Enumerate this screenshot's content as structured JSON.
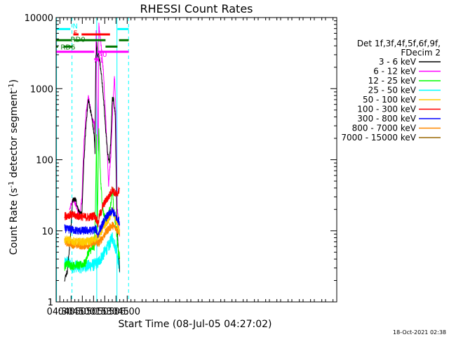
{
  "chart_data": {
    "type": "line",
    "title": "RHESSI Count Rates",
    "xlabel": "Start Time (08-Jul-05 04:27:02)",
    "ylabel_parts": [
      "Count Rate (s",
      "-1",
      " detector segment",
      "-1",
      ")"
    ],
    "yscale": "log",
    "xlim": [
      265,
      640
    ],
    "ylim": [
      1,
      10000
    ],
    "x_unit": "minutes after 00:00 UT",
    "x_ticks": [
      {
        "value": 270,
        "label": "04:30"
      },
      {
        "value": 285,
        "label": "04:45"
      },
      {
        "value": 300,
        "label": "05:00"
      },
      {
        "value": 315,
        "label": "05:15"
      },
      {
        "value": 330,
        "label": "05:30"
      },
      {
        "value": 345,
        "label": "05:45"
      },
      {
        "value": 360,
        "label": "06:00"
      }
    ],
    "y_ticks": [
      {
        "value": 1,
        "label": "1"
      },
      {
        "value": 10,
        "label": "10"
      },
      {
        "value": 100,
        "label": "100"
      },
      {
        "value": 1000,
        "label": "1000"
      },
      {
        "value": 10000,
        "label": "10000"
      }
    ],
    "legend": {
      "header": [
        "Det 1f,3f,4f,5f,6f,9f,",
        "FDecim 2"
      ],
      "placement": "right"
    },
    "footer_timestamp": "18-Oct-2021 02:38",
    "series": [
      {
        "name": "3 - 6 keV",
        "color": "#000000",
        "points": [
          [
            276.3,
            2.1
          ],
          [
            280,
            2.7
          ],
          [
            284,
            8
          ],
          [
            287,
            27
          ],
          [
            291,
            28
          ],
          [
            294,
            21
          ],
          [
            297,
            17
          ],
          [
            299.5,
            18
          ],
          [
            302,
            90
          ],
          [
            305,
            320
          ],
          [
            308,
            700
          ],
          [
            310,
            560
          ],
          [
            313,
            380
          ],
          [
            316,
            210
          ],
          [
            317,
            120
          ],
          [
            318,
            2500
          ],
          [
            319.5,
            4300
          ],
          [
            320.5,
            2800
          ],
          [
            322,
            3000
          ],
          [
            325,
            1800
          ],
          [
            328,
            800
          ],
          [
            331,
            280
          ],
          [
            334,
            120
          ],
          [
            336,
            90
          ],
          [
            338,
            170
          ],
          [
            340,
            720
          ],
          [
            342,
            700
          ],
          [
            344,
            440
          ],
          [
            346,
            20
          ],
          [
            347.5,
            7
          ],
          [
            349,
            4
          ],
          [
            350,
            2.6
          ]
        ]
      },
      {
        "name": "6 - 12 keV",
        "color": "#ff00ff",
        "points": [
          [
            283,
            20
          ],
          [
            286,
            25
          ],
          [
            289,
            27
          ],
          [
            292,
            22
          ],
          [
            294,
            18
          ],
          [
            297,
            18
          ],
          [
            299.5,
            30
          ],
          [
            302,
            160
          ],
          [
            305,
            450
          ],
          [
            308,
            760
          ],
          [
            310,
            600
          ],
          [
            313,
            380
          ],
          [
            316,
            320
          ],
          [
            317,
            220
          ],
          [
            318.5,
            7000
          ],
          [
            319.5,
            800
          ],
          [
            320.5,
            250
          ],
          [
            321.5,
            120
          ],
          [
            322,
            8000
          ],
          [
            325,
            4200
          ],
          [
            328,
            1800
          ],
          [
            331,
            450
          ],
          [
            333.5,
            110
          ],
          [
            335,
            45
          ],
          [
            338,
            110
          ],
          [
            341,
            600
          ],
          [
            343,
            1600
          ],
          [
            345,
            400
          ],
          [
            346.5,
            22
          ],
          [
            349,
            12
          ],
          [
            350,
            8
          ]
        ]
      },
      {
        "name": "12 - 25 keV",
        "color": "#00ff00",
        "points": [
          [
            276.3,
            3.1
          ],
          [
            280,
            3.5
          ],
          [
            284,
            3.3
          ],
          [
            288,
            3.2
          ],
          [
            292,
            3.4
          ],
          [
            296,
            3.2
          ],
          [
            300,
            3.4
          ],
          [
            304,
            3.5
          ],
          [
            308,
            5
          ],
          [
            312,
            5.5
          ],
          [
            316,
            6
          ],
          [
            317.5,
            20
          ],
          [
            319,
            260
          ],
          [
            320,
            10
          ],
          [
            322,
            250
          ],
          [
            325,
            40
          ],
          [
            328,
            18
          ],
          [
            331,
            14
          ],
          [
            334,
            16
          ],
          [
            337,
            20
          ],
          [
            339,
            30
          ],
          [
            340.5,
            40
          ],
          [
            342,
            18
          ],
          [
            344,
            14
          ],
          [
            346,
            9
          ],
          [
            348,
            5
          ],
          [
            350,
            4.2
          ]
        ]
      },
      {
        "name": "25 - 50 keV",
        "color": "#00ffff",
        "points": [
          [
            276.3,
            3.4
          ],
          [
            280,
            3.7
          ],
          [
            284,
            3.3
          ],
          [
            288,
            3.1
          ],
          [
            292,
            3.2
          ],
          [
            296,
            3.1
          ],
          [
            300,
            3.1
          ],
          [
            304,
            3.2
          ],
          [
            308,
            3.2
          ],
          [
            312,
            3.3
          ],
          [
            316,
            3.3
          ],
          [
            318,
            3.5
          ],
          [
            320,
            3.4
          ],
          [
            322,
            3.7
          ],
          [
            324,
            4
          ],
          [
            327,
            4.5
          ],
          [
            330,
            5
          ],
          [
            333,
            5.7
          ],
          [
            336,
            6.3
          ],
          [
            338,
            7.2
          ],
          [
            340,
            8.3
          ],
          [
            342,
            7.1
          ],
          [
            344,
            6
          ],
          [
            346,
            5.2
          ],
          [
            348,
            3.8
          ],
          [
            350,
            3
          ]
        ]
      },
      {
        "name": "50 - 100 keV",
        "color": "#ffcc00",
        "points": [
          [
            276.3,
            7.6
          ],
          [
            280,
            7.5
          ],
          [
            284,
            7.3
          ],
          [
            288,
            7.1
          ],
          [
            292,
            7
          ],
          [
            296,
            7
          ],
          [
            300,
            7
          ],
          [
            304,
            7
          ],
          [
            308,
            7.1
          ],
          [
            312,
            7.3
          ],
          [
            316,
            7.5
          ],
          [
            318,
            8
          ],
          [
            320,
            8.3
          ],
          [
            322,
            8.8
          ],
          [
            324,
            9.3
          ],
          [
            327,
            10.5
          ],
          [
            330,
            12
          ],
          [
            333,
            13.5
          ],
          [
            336,
            15
          ],
          [
            338,
            17
          ],
          [
            340,
            20
          ],
          [
            342,
            18
          ],
          [
            344,
            15
          ],
          [
            346,
            13
          ],
          [
            348,
            11
          ],
          [
            350,
            9.5
          ]
        ]
      },
      {
        "name": "100 - 300 keV",
        "color": "#ff0000",
        "points": [
          [
            276.3,
            16
          ],
          [
            280,
            16.5
          ],
          [
            284,
            17
          ],
          [
            288,
            16.5
          ],
          [
            292,
            16.3
          ],
          [
            296,
            16
          ],
          [
            300,
            15.8
          ],
          [
            304,
            15.6
          ],
          [
            308,
            15.5
          ],
          [
            312,
            15.8
          ],
          [
            316,
            16.5
          ],
          [
            318,
            15
          ],
          [
            320,
            14
          ],
          [
            321,
            12
          ],
          [
            323,
            17
          ],
          [
            325,
            18
          ],
          [
            327,
            22
          ],
          [
            330,
            25
          ],
          [
            333,
            28
          ],
          [
            336,
            31
          ],
          [
            338,
            34
          ],
          [
            340,
            38
          ],
          [
            342,
            36
          ],
          [
            344,
            33
          ],
          [
            346,
            32
          ],
          [
            348,
            36
          ],
          [
            350,
            39
          ]
        ]
      },
      {
        "name": "300 - 800 keV",
        "color": "#0000ff",
        "points": [
          [
            276.3,
            10.8
          ],
          [
            280,
            10.4
          ],
          [
            284,
            10.5
          ],
          [
            288,
            10.3
          ],
          [
            292,
            10
          ],
          [
            296,
            10
          ],
          [
            300,
            10
          ],
          [
            304,
            10.1
          ],
          [
            308,
            10
          ],
          [
            312,
            10.1
          ],
          [
            316,
            10.4
          ],
          [
            318,
            10.5
          ],
          [
            320,
            9.5
          ],
          [
            321,
            8.5
          ],
          [
            323,
            10.5
          ],
          [
            325,
            11
          ],
          [
            327,
            12.5
          ],
          [
            330,
            14.5
          ],
          [
            333,
            16
          ],
          [
            336,
            17
          ],
          [
            338,
            18
          ],
          [
            340,
            19
          ],
          [
            342,
            18
          ],
          [
            344,
            16.5
          ],
          [
            346,
            14.5
          ],
          [
            348,
            14
          ],
          [
            350,
            13.5
          ]
        ]
      },
      {
        "name": "800 - 7000 keV",
        "color": "#ff8800",
        "points": [
          [
            276.3,
            7.2
          ],
          [
            280,
            6.8
          ],
          [
            284,
            6.7
          ],
          [
            288,
            6.4
          ],
          [
            292,
            6.3
          ],
          [
            296,
            6.3
          ],
          [
            300,
            6.2
          ],
          [
            304,
            6.2
          ],
          [
            308,
            6.3
          ],
          [
            312,
            6.5
          ],
          [
            316,
            6.8
          ],
          [
            318,
            7
          ],
          [
            320,
            6.6
          ],
          [
            322,
            6.7
          ],
          [
            324,
            7.3
          ],
          [
            327,
            8
          ],
          [
            330,
            9
          ],
          [
            333,
            10
          ],
          [
            336,
            11
          ],
          [
            338,
            11.5
          ],
          [
            340,
            12
          ],
          [
            342,
            11.5
          ],
          [
            344,
            11
          ],
          [
            346,
            10.5
          ],
          [
            348,
            10
          ],
          [
            350,
            9.5
          ]
        ]
      },
      {
        "name": "7000 - 15000 keV",
        "color": "#996600",
        "points": []
      }
    ],
    "attenuator_bars": [
      {
        "label": "N",
        "color": "#00ffff",
        "y": 6900,
        "segments": [
          [
            265,
            284
          ],
          [
            347,
            362
          ]
        ],
        "label_at": [
          287,
          7700
        ]
      },
      {
        "label": "F",
        "color": "#ff0000",
        "y": 5800,
        "segments": [
          [
            288,
            295
          ],
          [
            299,
            337
          ]
        ],
        "label_at": [
          288,
          6100
        ]
      },
      {
        "label": "RD0",
        "color": "#007700",
        "y": 4800,
        "segments": [
          [
            265,
            285
          ],
          [
            289,
            331
          ],
          [
            349,
            362
          ]
        ],
        "label_at": [
          284.3,
          5000
        ]
      },
      {
        "label": "RD6",
        "color": "#007700",
        "y": 3900,
        "segments": [
          [
            265,
            267.5
          ],
          [
            275,
            287
          ],
          [
            331,
            347
          ]
        ],
        "label_at": [
          271,
          3900
        ]
      },
      {
        "label": "A1",
        "color": "#ff00ff",
        "y": 3300,
        "segments": [
          [
            265,
            316
          ],
          [
            320,
            362
          ]
        ],
        "label_at": [
          316.3,
          2550
        ]
      },
      {
        "label": "A0",
        "color": "#ff00ff",
        "y": 2600,
        "segments": [
          [
            316,
            322
          ]
        ],
        "label_at": [
          320.6,
          3050
        ]
      }
    ],
    "vertical_markers": [
      {
        "x": 265.6,
        "style": "solid",
        "color": "#00ffff"
      },
      {
        "x": 286.2,
        "style": "dashed",
        "color": "#00ffff"
      },
      {
        "x": 319.3,
        "style": "solid",
        "color": "#00ffff"
      },
      {
        "x": 346.3,
        "style": "solid",
        "color": "#00ffff"
      },
      {
        "x": 361.8,
        "style": "dashed",
        "color": "#00ffff"
      }
    ]
  }
}
